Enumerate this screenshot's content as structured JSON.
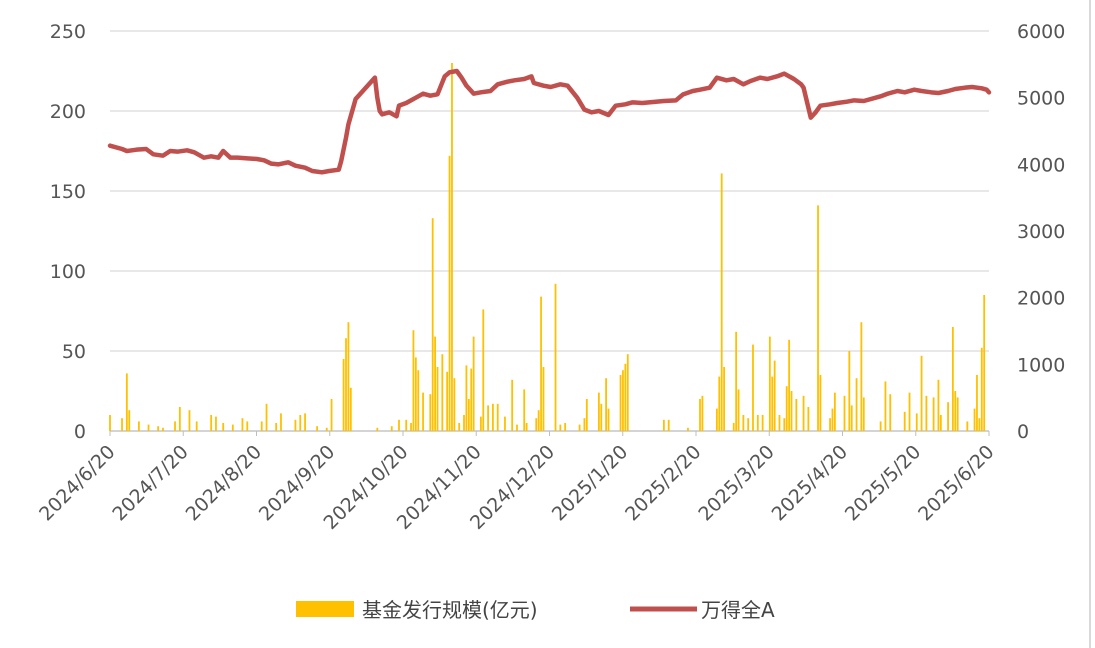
{
  "chart_data": {
    "type": "bar+line",
    "title": "",
    "x_tick_labels": [
      "2024/6/20",
      "2024/7/20",
      "2024/8/20",
      "2024/9/20",
      "2024/10/20",
      "2024/11/20",
      "2024/12/20",
      "2025/1/20",
      "2025/2/20",
      "2025/3/20",
      "2025/4/20",
      "2025/5/20",
      "2025/6/20"
    ],
    "x_range": [
      "2024/6/20",
      "2025/6/20"
    ],
    "left_axis": {
      "ylim": [
        0,
        250
      ],
      "ticks": [
        "0",
        "50",
        "100",
        "150",
        "200",
        "250"
      ]
    },
    "right_axis": {
      "ylim": [
        0,
        6000
      ],
      "ticks": [
        "0",
        "1000",
        "2000",
        "3000",
        "4000",
        "5000",
        "6000"
      ]
    },
    "grid": "horizontal",
    "legend_position": "bottom",
    "series": [
      {
        "name": "基金发行规模(亿元)",
        "type": "bar",
        "axis": "left",
        "color": "#FFC000",
        "points": [
          [
            "2024-06-20",
            10
          ],
          [
            "2024-06-25",
            8
          ],
          [
            "2024-06-27",
            36
          ],
          [
            "2024-06-28",
            13
          ],
          [
            "2024-07-02",
            6
          ],
          [
            "2024-07-06",
            4
          ],
          [
            "2024-07-10",
            3
          ],
          [
            "2024-07-12",
            2
          ],
          [
            "2024-07-17",
            6
          ],
          [
            "2024-07-19",
            15
          ],
          [
            "2024-07-23",
            13
          ],
          [
            "2024-07-26",
            6
          ],
          [
            "2024-08-01",
            10
          ],
          [
            "2024-08-03",
            9
          ],
          [
            "2024-08-06",
            5
          ],
          [
            "2024-08-10",
            4
          ],
          [
            "2024-08-14",
            8
          ],
          [
            "2024-08-16",
            6
          ],
          [
            "2024-08-22",
            6
          ],
          [
            "2024-08-24",
            17
          ],
          [
            "2024-08-28",
            5
          ],
          [
            "2024-08-30",
            11
          ],
          [
            "2024-09-05",
            7
          ],
          [
            "2024-09-07",
            10
          ],
          [
            "2024-09-09",
            11
          ],
          [
            "2024-09-14",
            3
          ],
          [
            "2024-09-18",
            2
          ],
          [
            "2024-09-20",
            20
          ],
          [
            "2024-09-25",
            45
          ],
          [
            "2024-09-26",
            58
          ],
          [
            "2024-09-27",
            68
          ],
          [
            "2024-09-28",
            27
          ],
          [
            "2024-10-09",
            2
          ],
          [
            "2024-10-15",
            3
          ],
          [
            "2024-10-18",
            7
          ],
          [
            "2024-10-21",
            7
          ],
          [
            "2024-10-23",
            5
          ],
          [
            "2024-10-24",
            63
          ],
          [
            "2024-10-25",
            46
          ],
          [
            "2024-10-26",
            38
          ],
          [
            "2024-10-28",
            24
          ],
          [
            "2024-10-31",
            23
          ],
          [
            "2024-11-01",
            133
          ],
          [
            "2024-11-02",
            59
          ],
          [
            "2024-11-03",
            40
          ],
          [
            "2024-11-05",
            48
          ],
          [
            "2024-11-07",
            37
          ],
          [
            "2024-11-08",
            172
          ],
          [
            "2024-11-09",
            230
          ],
          [
            "2024-11-10",
            33
          ],
          [
            "2024-11-12",
            5
          ],
          [
            "2024-11-14",
            10
          ],
          [
            "2024-11-15",
            41
          ],
          [
            "2024-11-16",
            20
          ],
          [
            "2024-11-17",
            39
          ],
          [
            "2024-11-18",
            59
          ],
          [
            "2024-11-21",
            9
          ],
          [
            "2024-11-22",
            76
          ],
          [
            "2024-11-24",
            16
          ],
          [
            "2024-11-26",
            17
          ],
          [
            "2024-11-28",
            17
          ],
          [
            "2024-12-01",
            9
          ],
          [
            "2024-12-04",
            32
          ],
          [
            "2024-12-06",
            4
          ],
          [
            "2024-12-09",
            26
          ],
          [
            "2024-12-10",
            5
          ],
          [
            "2024-12-14",
            8
          ],
          [
            "2024-12-15",
            13
          ],
          [
            "2024-12-16",
            84
          ],
          [
            "2024-12-17",
            40
          ],
          [
            "2024-12-22",
            92
          ],
          [
            "2024-12-24",
            4
          ],
          [
            "2024-12-26",
            5
          ],
          [
            "2025-01-01",
            4
          ],
          [
            "2025-01-03",
            8
          ],
          [
            "2025-01-04",
            20
          ],
          [
            "2025-01-09",
            24
          ],
          [
            "2025-01-10",
            17
          ],
          [
            "2025-01-12",
            33
          ],
          [
            "2025-01-13",
            14
          ],
          [
            "2025-01-18",
            35
          ],
          [
            "2025-01-19",
            38
          ],
          [
            "2025-01-20",
            42
          ],
          [
            "2025-01-21",
            48
          ],
          [
            "2025-02-05",
            7
          ],
          [
            "2025-02-07",
            7
          ],
          [
            "2025-02-15",
            2
          ],
          [
            "2025-02-20",
            20
          ],
          [
            "2025-02-21",
            22
          ],
          [
            "2025-02-27",
            14
          ],
          [
            "2025-02-28",
            34
          ],
          [
            "2025-03-01",
            161
          ],
          [
            "2025-03-02",
            40
          ],
          [
            "2025-03-06",
            5
          ],
          [
            "2025-03-07",
            62
          ],
          [
            "2025-03-08",
            26
          ],
          [
            "2025-03-10",
            10
          ],
          [
            "2025-03-12",
            8
          ],
          [
            "2025-03-14",
            54
          ],
          [
            "2025-03-16",
            10
          ],
          [
            "2025-03-18",
            10
          ],
          [
            "2025-03-21",
            59
          ],
          [
            "2025-03-22",
            34
          ],
          [
            "2025-03-23",
            44
          ],
          [
            "2025-03-25",
            10
          ],
          [
            "2025-03-27",
            8
          ],
          [
            "2025-03-28",
            28
          ],
          [
            "2025-03-29",
            57
          ],
          [
            "2025-03-30",
            25
          ],
          [
            "2025-04-01",
            20
          ],
          [
            "2025-04-04",
            22
          ],
          [
            "2025-04-06",
            15
          ],
          [
            "2025-04-10",
            141
          ],
          [
            "2025-04-11",
            35
          ],
          [
            "2025-04-15",
            8
          ],
          [
            "2025-04-16",
            14
          ],
          [
            "2025-04-17",
            24
          ],
          [
            "2025-04-21",
            22
          ],
          [
            "2025-04-23",
            50
          ],
          [
            "2025-04-24",
            16
          ],
          [
            "2025-04-26",
            33
          ],
          [
            "2025-04-28",
            68
          ],
          [
            "2025-04-29",
            21
          ],
          [
            "2025-05-06",
            6
          ],
          [
            "2025-05-08",
            31
          ],
          [
            "2025-05-10",
            23
          ],
          [
            "2025-05-16",
            12
          ],
          [
            "2025-05-18",
            24
          ],
          [
            "2025-05-21",
            11
          ],
          [
            "2025-05-23",
            47
          ],
          [
            "2025-05-25",
            22
          ],
          [
            "2025-05-28",
            21
          ],
          [
            "2025-05-30",
            32
          ],
          [
            "2025-05-31",
            10
          ],
          [
            "2025-06-03",
            18
          ],
          [
            "2025-06-05",
            65
          ],
          [
            "2025-06-06",
            25
          ],
          [
            "2025-06-07",
            21
          ],
          [
            "2025-06-11",
            6
          ],
          [
            "2025-06-14",
            14
          ],
          [
            "2025-06-15",
            35
          ],
          [
            "2025-06-16",
            8
          ],
          [
            "2025-06-17",
            52
          ],
          [
            "2025-06-18",
            85
          ]
        ]
      },
      {
        "name": "万得全A",
        "type": "line",
        "axis": "right",
        "color": "#C0504D",
        "points": [
          [
            "2024-06-20",
            4280
          ],
          [
            "2024-06-25",
            4230
          ],
          [
            "2024-06-27",
            4200
          ],
          [
            "2024-07-01",
            4220
          ],
          [
            "2024-07-05",
            4230
          ],
          [
            "2024-07-08",
            4150
          ],
          [
            "2024-07-12",
            4130
          ],
          [
            "2024-07-15",
            4200
          ],
          [
            "2024-07-18",
            4190
          ],
          [
            "2024-07-22",
            4210
          ],
          [
            "2024-07-25",
            4180
          ],
          [
            "2024-07-29",
            4100
          ],
          [
            "2024-08-01",
            4120
          ],
          [
            "2024-08-04",
            4100
          ],
          [
            "2024-08-06",
            4200
          ],
          [
            "2024-08-09",
            4100
          ],
          [
            "2024-08-12",
            4100
          ],
          [
            "2024-08-16",
            4090
          ],
          [
            "2024-08-20",
            4080
          ],
          [
            "2024-08-23",
            4060
          ],
          [
            "2024-08-26",
            4010
          ],
          [
            "2024-08-29",
            4000
          ],
          [
            "2024-09-02",
            4030
          ],
          [
            "2024-09-05",
            3980
          ],
          [
            "2024-09-09",
            3950
          ],
          [
            "2024-09-12",
            3900
          ],
          [
            "2024-09-16",
            3880
          ],
          [
            "2024-09-19",
            3900
          ],
          [
            "2024-09-23",
            3920
          ],
          [
            "2024-09-24",
            4050
          ],
          [
            "2024-09-26",
            4400
          ],
          [
            "2024-09-27",
            4600
          ],
          [
            "2024-09-30",
            4980
          ],
          [
            "2024-10-08",
            5300
          ],
          [
            "2024-10-09",
            5000
          ],
          [
            "2024-10-10",
            4800
          ],
          [
            "2024-10-11",
            4750
          ],
          [
            "2024-10-14",
            4780
          ],
          [
            "2024-10-17",
            4720
          ],
          [
            "2024-10-18",
            4880
          ],
          [
            "2024-10-21",
            4920
          ],
          [
            "2024-10-25",
            5000
          ],
          [
            "2024-10-28",
            5060
          ],
          [
            "2024-10-31",
            5030
          ],
          [
            "2024-11-03",
            5050
          ],
          [
            "2024-11-06",
            5320
          ],
          [
            "2024-11-08",
            5380
          ],
          [
            "2024-11-11",
            5400
          ],
          [
            "2024-11-13",
            5300
          ],
          [
            "2024-11-15",
            5180
          ],
          [
            "2024-11-18",
            5060
          ],
          [
            "2024-11-21",
            5080
          ],
          [
            "2024-11-25",
            5100
          ],
          [
            "2024-11-28",
            5200
          ],
          [
            "2024-12-02",
            5240
          ],
          [
            "2024-12-05",
            5260
          ],
          [
            "2024-12-09",
            5280
          ],
          [
            "2024-12-12",
            5320
          ],
          [
            "2024-12-13",
            5220
          ],
          [
            "2024-12-17",
            5180
          ],
          [
            "2024-12-20",
            5160
          ],
          [
            "2024-12-24",
            5200
          ],
          [
            "2024-12-27",
            5180
          ],
          [
            "2024-12-31",
            5000
          ],
          [
            "2025-01-03",
            4820
          ],
          [
            "2025-01-06",
            4780
          ],
          [
            "2025-01-09",
            4800
          ],
          [
            "2025-01-13",
            4740
          ],
          [
            "2025-01-16",
            4880
          ],
          [
            "2025-01-20",
            4900
          ],
          [
            "2025-01-23",
            4930
          ],
          [
            "2025-01-27",
            4920
          ],
          [
            "2025-02-05",
            4950
          ],
          [
            "2025-02-10",
            4960
          ],
          [
            "2025-02-13",
            5050
          ],
          [
            "2025-02-17",
            5100
          ],
          [
            "2025-02-20",
            5120
          ],
          [
            "2025-02-24",
            5150
          ],
          [
            "2025-02-27",
            5300
          ],
          [
            "2025-03-03",
            5260
          ],
          [
            "2025-03-06",
            5280
          ],
          [
            "2025-03-10",
            5200
          ],
          [
            "2025-03-13",
            5250
          ],
          [
            "2025-03-17",
            5300
          ],
          [
            "2025-03-20",
            5280
          ],
          [
            "2025-03-24",
            5320
          ],
          [
            "2025-03-27",
            5360
          ],
          [
            "2025-03-31",
            5280
          ],
          [
            "2025-04-03",
            5200
          ],
          [
            "2025-04-04",
            5150
          ],
          [
            "2025-04-07",
            4700
          ],
          [
            "2025-04-09",
            4780
          ],
          [
            "2025-04-11",
            4880
          ],
          [
            "2025-04-15",
            4900
          ],
          [
            "2025-04-18",
            4920
          ],
          [
            "2025-04-22",
            4940
          ],
          [
            "2025-04-25",
            4960
          ],
          [
            "2025-04-29",
            4950
          ],
          [
            "2025-05-06",
            5020
          ],
          [
            "2025-05-09",
            5060
          ],
          [
            "2025-05-13",
            5100
          ],
          [
            "2025-05-16",
            5080
          ],
          [
            "2025-05-20",
            5120
          ],
          [
            "2025-05-23",
            5100
          ],
          [
            "2025-05-27",
            5080
          ],
          [
            "2025-05-30",
            5070
          ],
          [
            "2025-06-03",
            5100
          ],
          [
            "2025-06-06",
            5130
          ],
          [
            "2025-06-10",
            5150
          ],
          [
            "2025-06-13",
            5160
          ],
          [
            "2025-06-17",
            5140
          ],
          [
            "2025-06-19",
            5120
          ],
          [
            "2025-06-20",
            5080
          ]
        ]
      }
    ]
  }
}
